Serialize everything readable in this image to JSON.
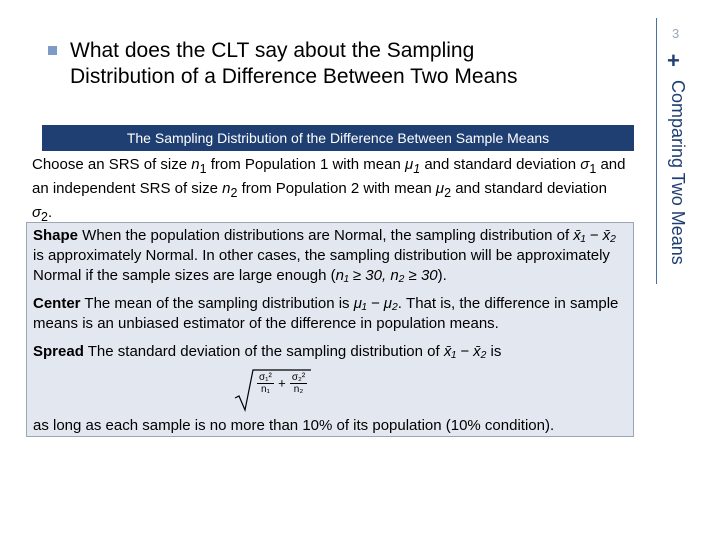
{
  "slide": {
    "number": "3",
    "side_title": "Comparing Two Means",
    "side_mark": "+",
    "heading_line1": "What does the CLT say about the Sampling",
    "heading_line2": "Distribution of a Difference Between Two Means"
  },
  "box": {
    "title": "The Sampling Distribution of the Difference Between Sample Means",
    "intro_a": "Choose an SRS of size ",
    "n1": "n",
    "sub1": "1",
    "intro_b": " from Population 1 with mean ",
    "mu": "μ",
    "intro_c": " and standard deviation ",
    "sigma": "σ",
    "intro_d": " and an independent SRS of size ",
    "sub2": "2",
    "intro_e": " from Population 2 with mean ",
    "intro_f": " and standard deviation ",
    "intro_end": ".",
    "shape_label": "Shape",
    "shape_a": " When the population distributions are Normal, the sampling distribution of ",
    "xdiff": "x̄₁ − x̄₂",
    "shape_b": " is approximately Normal. In other cases, the sampling distribution will be approximately Normal if the sample sizes are large enough (",
    "shape_cond": "n₁ ≥ 30, n₂ ≥ 30",
    "shape_c": ").",
    "center_label": "Center",
    "center_a": " The mean of the sampling distribution is ",
    "mudiff": "μ₁ − μ₂",
    "center_b": ". That is, the difference in sample means is an unbiased estimator of the difference in population means.",
    "spread_label": "Spread",
    "spread_a": " The standard deviation of the sampling distribution of ",
    "spread_b": " is",
    "f1_num": "σ₁²",
    "f1_den": "n₁",
    "plus": "+",
    "f2_num": "σ₂²",
    "f2_den": "n₂",
    "last": "as long as each sample is no more than 10% of its population (10% condition)."
  },
  "colors": {
    "accent": "#1f3f73",
    "box_fill": "#e3e7f0",
    "bullet": "#7e9bc6"
  }
}
